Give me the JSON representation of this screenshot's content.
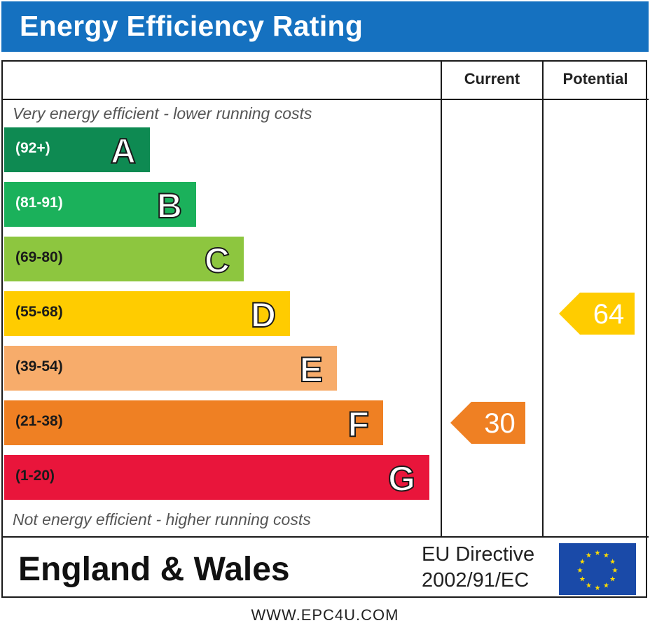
{
  "header": {
    "title": "Energy Efficiency Rating"
  },
  "columns": {
    "current": "Current",
    "potential": "Potential"
  },
  "captions": {
    "top": "Very energy efficient - lower running costs",
    "bottom": "Not energy efficient - higher running costs"
  },
  "footer": {
    "region": "England & Wales",
    "directive_line1": "EU Directive",
    "directive_line2": "2002/91/EC",
    "website": "WWW.EPC4U.COM"
  },
  "chart_data": {
    "type": "bar",
    "bands": [
      {
        "letter": "A",
        "range": "(92+)",
        "color": "#0e8a52",
        "range_color": "#ffffff"
      },
      {
        "letter": "B",
        "range": "(81-91)",
        "color": "#1bb15b",
        "range_color": "#ffffff"
      },
      {
        "letter": "C",
        "range": "(69-80)",
        "color": "#8dc63f",
        "range_color": "#1a1a1a"
      },
      {
        "letter": "D",
        "range": "(55-68)",
        "color": "#ffcc00",
        "range_color": "#1a1a1a"
      },
      {
        "letter": "E",
        "range": "(39-54)",
        "color": "#f7ac6b",
        "range_color": "#1a1a1a"
      },
      {
        "letter": "F",
        "range": "(21-38)",
        "color": "#ef8023",
        "range_color": "#1a1a1a"
      },
      {
        "letter": "G",
        "range": "(1-20)",
        "color": "#e9153b",
        "range_color": "#1a1a1a"
      }
    ],
    "current": {
      "value": 30,
      "band": "F",
      "color": "#ef8023"
    },
    "potential": {
      "value": 64,
      "band": "D",
      "color": "#ffcc00"
    }
  },
  "eu_flag": {
    "blue": "#1a4aa8",
    "star": "#ffdd00"
  }
}
